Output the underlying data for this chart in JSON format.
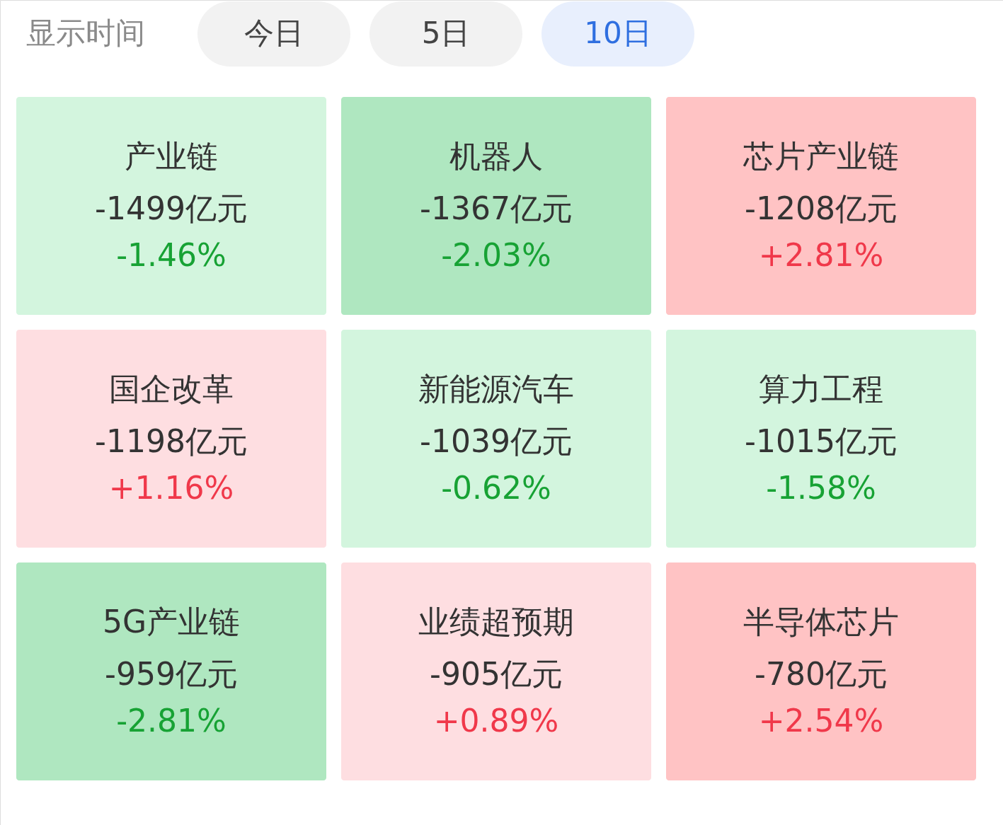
{
  "chart_data": {
    "type": "other",
    "title": "显示时间",
    "annotations": [
      "今日",
      "5日",
      "10日"
    ],
    "categories": [
      "产业链",
      "机器人",
      "芯片产业链",
      "国企改革",
      "新能源汽车",
      "算力工程",
      "5G产业链",
      "业绩超预期",
      "半导体芯片"
    ],
    "series": [
      {
        "colors": [
          "#d3f5de",
          "#afe7c0",
          "#ffc3c4",
          "#fedee1",
          "#d3f5de",
          "#d3f5de",
          "#afe7c0",
          "#fedee1",
          "#ffc3c4"
        ],
        "values": [
          -1499,
          -1367,
          -1208,
          -1198,
          -1039,
          -1015,
          -959,
          -905,
          -780
        ],
        "value_labels": [
          "-1499亿元",
          "-1367亿元",
          "-1208亿元",
          "-1198亿元",
          "-1039亿元",
          "-1015亿元",
          "-959亿元",
          "-905亿元",
          "-780亿元"
        ]
      },
      {
        "values": [
          -1.46,
          -2.03,
          2.81,
          1.16,
          -0.62,
          -1.58,
          -2.81,
          0.89,
          2.54
        ],
        "value_labels": [
          "-1.46%",
          "-2.03%",
          "+2.81%",
          "+1.16%",
          "-0.62%",
          "-1.58%",
          "-2.81%",
          "+0.89%",
          "+2.54%"
        ]
      }
    ]
  }
}
